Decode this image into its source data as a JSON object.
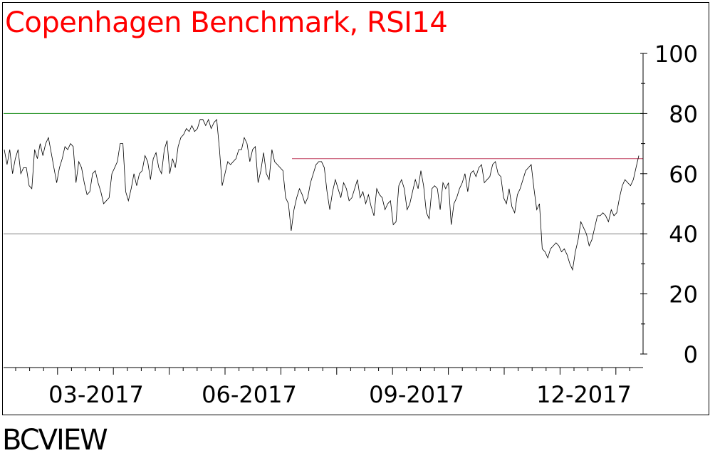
{
  "chart_data": {
    "type": "line",
    "title": "Copenhagen Benchmark, RSI14",
    "ylim": [
      0,
      100
    ],
    "yticks": [
      "100",
      "80",
      "60",
      "40",
      "20",
      "0"
    ],
    "xticks": [
      "03-2017",
      "06-2017",
      "09-2017",
      "12-2017"
    ],
    "reference_lines": [
      {
        "value": 80,
        "color": "#008000"
      },
      {
        "value": 40,
        "color": "#808080"
      },
      {
        "value": 65,
        "color": "#c04060",
        "partial": true
      }
    ],
    "series": [
      {
        "values": [
          68,
          63,
          68,
          60,
          65,
          68,
          60,
          62,
          62,
          56,
          55,
          68,
          65,
          70,
          66,
          70,
          72,
          67,
          62,
          57,
          62,
          65,
          69,
          68,
          70,
          69,
          57,
          64,
          62,
          57,
          53,
          54,
          60,
          61,
          57,
          54,
          50,
          51,
          52,
          60,
          62,
          64,
          70,
          70,
          54,
          51,
          55,
          60,
          56,
          60,
          61,
          66,
          64,
          58,
          65,
          67,
          62,
          60,
          68,
          71,
          60,
          65,
          62,
          69,
          72,
          73,
          75,
          74,
          76,
          74,
          75,
          78,
          78,
          76,
          78,
          75,
          77,
          78,
          68,
          56,
          60,
          64,
          63,
          64,
          65,
          68,
          68,
          72,
          70,
          64,
          68,
          69,
          57,
          61,
          67,
          60,
          58,
          68,
          64,
          63,
          62,
          61,
          52,
          50,
          41,
          48,
          52,
          55,
          53,
          50,
          52,
          57,
          60,
          63,
          64,
          64,
          62,
          54,
          48,
          54,
          58,
          55,
          52,
          57,
          55,
          51,
          52,
          55,
          58,
          52,
          54,
          50,
          53,
          49,
          46,
          55,
          53,
          52,
          48,
          50,
          51,
          43,
          44,
          56,
          58,
          55,
          48,
          50,
          54,
          58,
          55,
          61,
          56,
          47,
          45,
          55,
          56,
          55,
          48,
          57,
          55,
          57,
          43,
          50,
          52,
          55,
          57,
          60,
          54,
          60,
          61,
          59,
          62,
          63,
          57,
          58,
          59,
          63,
          64,
          60,
          59,
          52,
          50,
          55,
          49,
          47,
          53,
          55,
          58,
          61,
          62,
          63,
          55,
          48,
          50,
          35,
          34,
          32,
          35,
          36,
          37,
          36,
          34,
          35,
          33,
          30,
          28,
          34,
          38,
          44,
          42,
          40,
          36,
          38,
          42,
          46,
          46,
          47,
          46,
          44,
          48,
          46,
          47,
          52,
          56,
          58,
          57,
          56,
          58,
          62,
          66
        ]
      }
    ]
  }
}
